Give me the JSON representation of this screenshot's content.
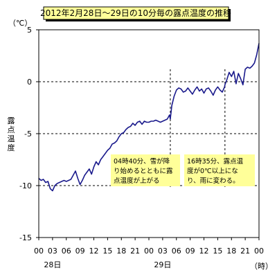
{
  "chart_data": {
    "type": "line",
    "title": "2012年2月28日～29日の10分毎の露点温度の推移",
    "unit_label": "（℃）",
    "ylabel": "露点温度",
    "xlabel_unit": "（時）",
    "ylim": [
      -15,
      5
    ],
    "yticks": [
      "5",
      "0",
      "-5",
      "-10",
      "-15"
    ],
    "ytick_values": [
      5,
      0,
      -5,
      -10,
      -15
    ],
    "grid_y": [
      0,
      -5,
      -10
    ],
    "xlim": [
      0,
      48
    ],
    "xtick_labels": [
      "00",
      "03",
      "06",
      "09",
      "12",
      "15",
      "18",
      "21",
      "00",
      "03",
      "06",
      "09",
      "12",
      "15",
      "18",
      "21",
      "00"
    ],
    "xtick_hours": [
      0,
      3,
      6,
      9,
      12,
      15,
      18,
      21,
      24,
      27,
      30,
      33,
      36,
      39,
      42,
      45,
      48
    ],
    "day_labels": [
      {
        "label": "28日",
        "hour": 3
      },
      {
        "label": "29日",
        "hour": 27
      }
    ],
    "annotations": [
      {
        "text_lines": [
          "04時40分、雪が降",
          "り始めるとともに露",
          "点温度が上がる"
        ],
        "hour": 28.67
      },
      {
        "text_lines": [
          "16時35分、露点温",
          "度が0℃以上にな",
          "り、雨に変わる。"
        ],
        "hour": 40.58
      }
    ],
    "series": [
      {
        "color": "#1a1a8c",
        "x": [
          0,
          0.5,
          1,
          1.5,
          2,
          2.5,
          3,
          3.5,
          4,
          4.5,
          5,
          5.5,
          6,
          6.5,
          7,
          7.5,
          8,
          8.5,
          9,
          9.5,
          10,
          10.5,
          11,
          11.5,
          12,
          12.5,
          13,
          13.5,
          14,
          14.5,
          15,
          15.5,
          16,
          16.5,
          17,
          17.5,
          18,
          18.5,
          19,
          19.5,
          20,
          20.5,
          21,
          21.5,
          22,
          22.5,
          23,
          23.5,
          24,
          24.5,
          25,
          25.5,
          26,
          26.5,
          27,
          27.5,
          28,
          28.5,
          28.67,
          29,
          29.5,
          30,
          30.5,
          31,
          31.5,
          32,
          32.5,
          33,
          33.5,
          34,
          34.5,
          35,
          35.5,
          36,
          36.5,
          37,
          37.5,
          38,
          38.5,
          39,
          39.5,
          40,
          40.5,
          40.58,
          41,
          41.5,
          42,
          42.5,
          43,
          43.5,
          44,
          44.5,
          45,
          45.5,
          46,
          46.5,
          47,
          47.5,
          48
        ],
        "values": [
          -9.3,
          -9.5,
          -9.4,
          -9.7,
          -9.6,
          -10.3,
          -10.5,
          -10.0,
          -9.8,
          -9.7,
          -9.6,
          -9.5,
          -9.6,
          -9.5,
          -9.4,
          -9.0,
          -8.6,
          -9.3,
          -9.9,
          -9.5,
          -9.0,
          -8.7,
          -8.4,
          -8.9,
          -8.2,
          -7.7,
          -8.0,
          -7.5,
          -7.2,
          -6.9,
          -6.6,
          -6.4,
          -6.0,
          -5.9,
          -5.7,
          -5.3,
          -5.0,
          -4.9,
          -4.6,
          -4.4,
          -4.3,
          -4.0,
          -4.2,
          -3.9,
          -3.8,
          -4.1,
          -3.8,
          -3.9,
          -3.9,
          -3.8,
          -3.8,
          -3.7,
          -3.8,
          -3.9,
          -3.8,
          -3.7,
          -3.6,
          -3.2,
          -3.6,
          -2.3,
          -1.4,
          -0.8,
          -0.6,
          -0.7,
          -1.0,
          -0.9,
          -0.6,
          -0.9,
          -1.2,
          -0.8,
          -0.5,
          -0.9,
          -0.7,
          -1.1,
          -0.7,
          -0.6,
          -0.9,
          -1.3,
          -0.8,
          -0.5,
          -0.8,
          -1.0,
          -0.5,
          -0.3,
          0.2,
          0.9,
          0.5,
          1.0,
          -0.2,
          0.8,
          0.3,
          -0.3,
          1.2,
          1.4,
          1.3,
          1.5,
          1.8,
          2.6,
          3.7
        ]
      }
    ]
  }
}
